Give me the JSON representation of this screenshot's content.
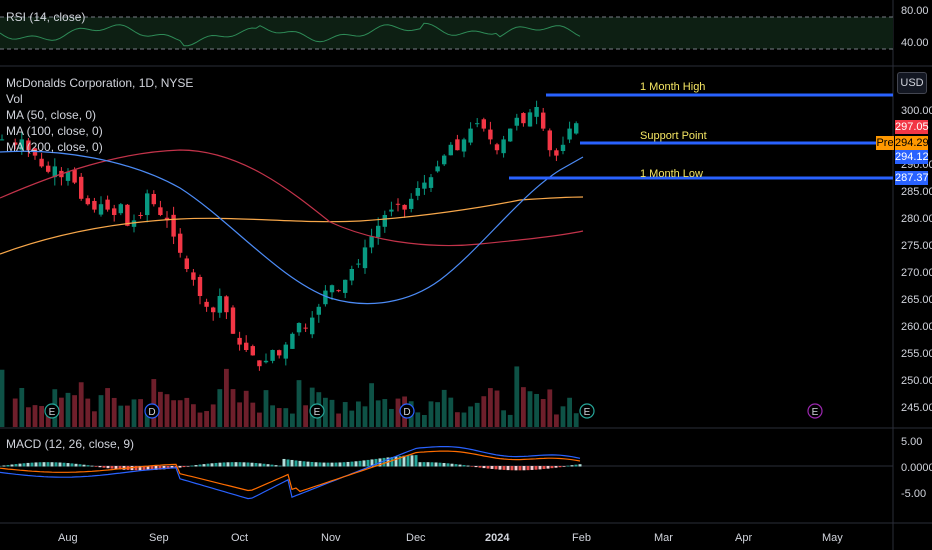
{
  "rsi": {
    "label": "RSI (14, close)",
    "ticks": [
      "80.00",
      "40.00"
    ]
  },
  "main": {
    "title": "McDonalds Corporation, 1D, NYSE",
    "indicators": [
      "Vol",
      "MA (50, close, 0)",
      "MA (100, close, 0)",
      "MA (200, close, 0)"
    ],
    "currency_button": "USD",
    "price_ticks": [
      "300.00",
      "295.00",
      "290.00",
      "285.00",
      "280.00",
      "275.00",
      "270.00",
      "265.00",
      "260.00",
      "255.00",
      "250.00",
      "245.00"
    ],
    "tags": [
      {
        "text": "297.05",
        "color": "#f23645"
      },
      {
        "text": "294.29",
        "color": "#ff9800",
        "prefix": "Pre"
      },
      {
        "text": "294.12",
        "color": "#2962ff"
      },
      {
        "text": "287.37",
        "color": "#2962ff"
      }
    ],
    "annotations": [
      "1 Month High",
      "Support Point",
      "1 Month Low"
    ],
    "level_color": "#2962ff",
    "up_color": "#089981",
    "down_color": "#f23645",
    "ma50_color": "#4c8bf5",
    "ma100_color": "#c2334a",
    "ma200_color": "#f7a74a",
    "event_markers": [
      "E",
      "D",
      "E",
      "D",
      "E",
      "E"
    ]
  },
  "macd": {
    "label": "MACD (12, 26, close, 9)",
    "ticks": [
      "5.00",
      "0.0000",
      "-5.00"
    ]
  },
  "time_axis": [
    "Aug",
    "Sep",
    "Oct",
    "Nov",
    "Dec",
    "2024",
    "Feb",
    "Mar",
    "Apr",
    "May"
  ],
  "chart_data": {
    "type": "candlestick",
    "title": "McDonalds Corporation, 1D, NYSE",
    "ylim": [
      242,
      304
    ],
    "levels": [
      {
        "label": "1 Month High",
        "price": 300.9
      },
      {
        "label": "Support Point",
        "price": 294.29
      },
      {
        "label": "1 Month Low",
        "price": 287.37
      }
    ],
    "close_path": [
      [
        293,
        294
      ],
      [
        295,
        293
      ],
      [
        296,
        294
      ],
      [
        297,
        292
      ],
      [
        298,
        291
      ],
      [
        299,
        289
      ],
      [
        300,
        288
      ],
      [
        301,
        289
      ],
      [
        302,
        287
      ],
      [
        303,
        288
      ],
      [
        304,
        286
      ],
      [
        305,
        283
      ],
      [
        306,
        282
      ],
      [
        307,
        281
      ],
      [
        308,
        282
      ],
      [
        309,
        281
      ],
      [
        310,
        280
      ],
      [
        311,
        282
      ],
      [
        312,
        278
      ],
      [
        313,
        279
      ],
      [
        314,
        280
      ],
      [
        315,
        284
      ],
      [
        316,
        282
      ],
      [
        317,
        280
      ],
      [
        318,
        279
      ],
      [
        319,
        276
      ],
      [
        320,
        273
      ],
      [
        321,
        270
      ],
      [
        322,
        268
      ],
      [
        323,
        265
      ],
      [
        324,
        263
      ],
      [
        325,
        262
      ],
      [
        326,
        265
      ],
      [
        327,
        262
      ],
      [
        328,
        258
      ],
      [
        329,
        256
      ],
      [
        330,
        255
      ],
      [
        331,
        254
      ],
      [
        332,
        252
      ],
      [
        333,
        253
      ],
      [
        334,
        255
      ],
      [
        335,
        254
      ],
      [
        336,
        256
      ],
      [
        337,
        258
      ],
      [
        338,
        260
      ],
      [
        339,
        259
      ],
      [
        340,
        261
      ],
      [
        341,
        263
      ],
      [
        342,
        266
      ],
      [
        343,
        267
      ],
      [
        344,
        266
      ],
      [
        345,
        268
      ],
      [
        346,
        270
      ],
      [
        347,
        271
      ],
      [
        348,
        274
      ],
      [
        349,
        276
      ],
      [
        350,
        278
      ],
      [
        351,
        280
      ],
      [
        352,
        281
      ],
      [
        353,
        282
      ],
      [
        354,
        281
      ],
      [
        355,
        283
      ],
      [
        356,
        285
      ],
      [
        357,
        286
      ],
      [
        358,
        287
      ],
      [
        359,
        289
      ],
      [
        360,
        291
      ],
      [
        361,
        293
      ],
      [
        362,
        292
      ],
      [
        363,
        294
      ],
      [
        364,
        296
      ],
      [
        365,
        297
      ],
      [
        366,
        296
      ],
      [
        367,
        294
      ],
      [
        368,
        292
      ],
      [
        369,
        294
      ],
      [
        370,
        296
      ],
      [
        371,
        298
      ],
      [
        372,
        297
      ],
      [
        373,
        299
      ],
      [
        374,
        300
      ],
      [
        375,
        296
      ],
      [
        376,
        292
      ],
      [
        377,
        291
      ],
      [
        378,
        293
      ],
      [
        379,
        296
      ],
      [
        380,
        297
      ]
    ]
  }
}
